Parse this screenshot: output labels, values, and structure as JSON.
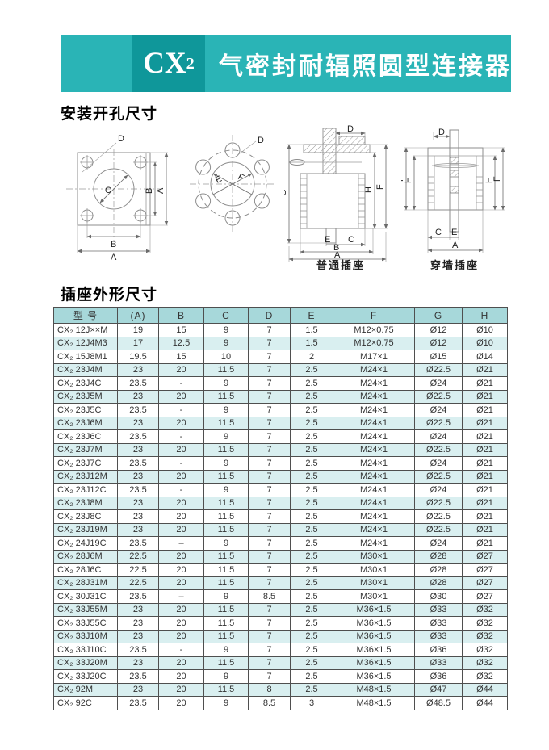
{
  "banner": {
    "code": "CX",
    "code_sub": "2",
    "title": "气密封耐辐照圆型连接器",
    "teal": "#2ab4b6",
    "dark_teal": "#0f979a"
  },
  "sections": {
    "mounting": "安装开孔尺寸",
    "outline": "插座外形尺寸"
  },
  "diagrams": {
    "dim_labels": {
      "A": "A",
      "B": "B",
      "C": "C",
      "D": "D",
      "E": "E",
      "F": "F",
      "G": "G",
      "H": "H"
    },
    "captions": {
      "normal": "普通插座",
      "through_wall": "穿墙插座"
    }
  },
  "table": {
    "headers": [
      "型 号",
      "(A)",
      "B",
      "C",
      "D",
      "E",
      "F",
      "G",
      "H"
    ],
    "rows": [
      [
        "CX₂ 12J××M",
        "19",
        "15",
        "9",
        "7",
        "1.5",
        "M12×0.75",
        "Ø12",
        "Ø10"
      ],
      [
        "CX₂ 12J4M3",
        "17",
        "12.5",
        "9",
        "7",
        "1.5",
        "M12×0.75",
        "Ø12",
        "Ø10"
      ],
      [
        "CX₂ 15J8M1",
        "19.5",
        "15",
        "10",
        "7",
        "2",
        "M17×1",
        "Ø15",
        "Ø14"
      ],
      [
        "CX₂ 23J4M",
        "23",
        "20",
        "11.5",
        "7",
        "2.5",
        "M24×1",
        "Ø22.5",
        "Ø21"
      ],
      [
        "CX₂ 23J4C",
        "23.5",
        "-",
        "9",
        "7",
        "2.5",
        "M24×1",
        "Ø24",
        "Ø21"
      ],
      [
        "CX₂ 23J5M",
        "23",
        "20",
        "11.5",
        "7",
        "2.5",
        "M24×1",
        "Ø22.5",
        "Ø21"
      ],
      [
        "CX₂ 23J5C",
        "23.5",
        "-",
        "9",
        "7",
        "2.5",
        "M24×1",
        "Ø24",
        "Ø21"
      ],
      [
        "CX₂ 23J6M",
        "23",
        "20",
        "11.5",
        "7",
        "2.5",
        "M24×1",
        "Ø22.5",
        "Ø21"
      ],
      [
        "CX₂ 23J6C",
        "23.5",
        "-",
        "9",
        "7",
        "2.5",
        "M24×1",
        "Ø24",
        "Ø21"
      ],
      [
        "CX₂ 23J7M",
        "23",
        "20",
        "11.5",
        "7",
        "2.5",
        "M24×1",
        "Ø22.5",
        "Ø21"
      ],
      [
        "CX₂ 23J7C",
        "23.5",
        "-",
        "9",
        "7",
        "2.5",
        "M24×1",
        "Ø24",
        "Ø21"
      ],
      [
        "CX₂ 23J12M",
        "23",
        "20",
        "11.5",
        "7",
        "2.5",
        "M24×1",
        "Ø22.5",
        "Ø21"
      ],
      [
        "CX₂ 23J12C",
        "23.5",
        "-",
        "9",
        "7",
        "2.5",
        "M24×1",
        "Ø24",
        "Ø21"
      ],
      [
        "CX₂ 23J8M",
        "23",
        "20",
        "11.5",
        "7",
        "2.5",
        "M24×1",
        "Ø22.5",
        "Ø21"
      ],
      [
        "CX₂ 23J8C",
        "23",
        "20",
        "11.5",
        "7",
        "2.5",
        "M24×1",
        "Ø22.5",
        "Ø21"
      ],
      [
        "CX₂ 23J19M",
        "23",
        "20",
        "11.5",
        "7",
        "2.5",
        "M24×1",
        "Ø22.5",
        "Ø21"
      ],
      [
        "CX₂ 24J19C",
        "23.5",
        "–",
        "9",
        "7",
        "2.5",
        "M24×1",
        "Ø24",
        "Ø21"
      ],
      [
        "CX₂ 28J6M",
        "22.5",
        "20",
        "11.5",
        "7",
        "2.5",
        "M30×1",
        "Ø28",
        "Ø27"
      ],
      [
        "CX₂ 28J6C",
        "22.5",
        "20",
        "11.5",
        "7",
        "2.5",
        "M30×1",
        "Ø28",
        "Ø27"
      ],
      [
        "CX₂ 28J31M",
        "22.5",
        "20",
        "11.5",
        "7",
        "2.5",
        "M30×1",
        "Ø28",
        "Ø27"
      ],
      [
        "CX₂ 30J31C",
        "23.5",
        "–",
        "9",
        "8.5",
        "2.5",
        "M30×1",
        "Ø30",
        "Ø27"
      ],
      [
        "CX₂ 33J55M",
        "23",
        "20",
        "11.5",
        "7",
        "2.5",
        "M36×1.5",
        "Ø33",
        "Ø32"
      ],
      [
        "CX₂ 33J55C",
        "23",
        "20",
        "11.5",
        "7",
        "2.5",
        "M36×1.5",
        "Ø33",
        "Ø32"
      ],
      [
        "CX₂ 33J10M",
        "23",
        "20",
        "11.5",
        "7",
        "2.5",
        "M36×1.5",
        "Ø33",
        "Ø32"
      ],
      [
        "CX₂ 33J10C",
        "23.5",
        "-",
        "9",
        "7",
        "2.5",
        "M36×1.5",
        "Ø36",
        "Ø32"
      ],
      [
        "CX₂ 33J20M",
        "23",
        "20",
        "11.5",
        "7",
        "2.5",
        "M36×1.5",
        "Ø33",
        "Ø32"
      ],
      [
        "CX₂ 33J20C",
        "23.5",
        "20",
        "9",
        "7",
        "2.5",
        "M36×1.5",
        "Ø36",
        "Ø32"
      ],
      [
        "CX₂ 92M",
        "23",
        "20",
        "11.5",
        "8",
        "2.5",
        "M48×1.5",
        "Ø47",
        "Ø44"
      ],
      [
        "CX₂ 92C",
        "23.5",
        "20",
        "9",
        "8.5",
        "3",
        "M48×1.5",
        "Ø48.5",
        "Ø44"
      ]
    ]
  }
}
